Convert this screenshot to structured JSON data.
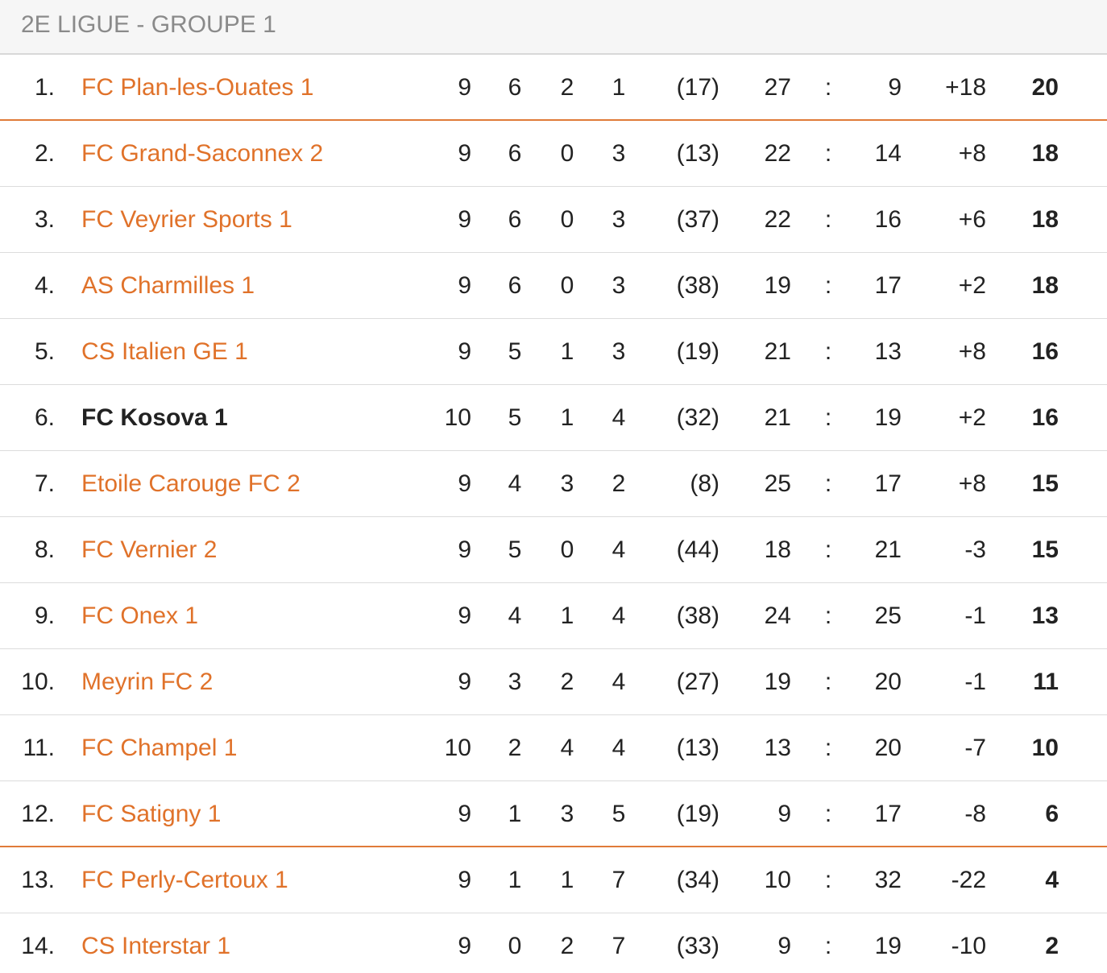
{
  "header": {
    "title": "2E LIGUE - GROUPE 1"
  },
  "table": {
    "rows": [
      [
        "1.",
        "FC Plan-les-Ouates 1",
        "9",
        "6",
        "2",
        "1",
        "(17)",
        "27",
        ":",
        "9",
        "+18",
        "20"
      ],
      [
        "2.",
        "FC Grand-Saconnex 2",
        "9",
        "6",
        "0",
        "3",
        "(13)",
        "22",
        ":",
        "14",
        "+8",
        "18"
      ],
      [
        "3.",
        "FC Veyrier Sports 1",
        "9",
        "6",
        "0",
        "3",
        "(37)",
        "22",
        ":",
        "16",
        "+6",
        "18"
      ],
      [
        "4.",
        "AS Charmilles 1",
        "9",
        "6",
        "0",
        "3",
        "(38)",
        "19",
        ":",
        "17",
        "+2",
        "18"
      ],
      [
        "5.",
        "CS Italien GE 1",
        "9",
        "5",
        "1",
        "3",
        "(19)",
        "21",
        ":",
        "13",
        "+8",
        "16"
      ],
      [
        "6.",
        "FC Kosova 1",
        "10",
        "5",
        "1",
        "4",
        "(32)",
        "21",
        ":",
        "19",
        "+2",
        "16"
      ],
      [
        "7.",
        "Etoile Carouge FC 2",
        "9",
        "4",
        "3",
        "2",
        "(8)",
        "25",
        ":",
        "17",
        "+8",
        "15"
      ],
      [
        "8.",
        "FC Vernier 2",
        "9",
        "5",
        "0",
        "4",
        "(44)",
        "18",
        ":",
        "21",
        "-3",
        "15"
      ],
      [
        "9.",
        "FC Onex 1",
        "9",
        "4",
        "1",
        "4",
        "(38)",
        "24",
        ":",
        "25",
        "-1",
        "13"
      ],
      [
        "10.",
        "Meyrin FC 2",
        "9",
        "3",
        "2",
        "4",
        "(27)",
        "19",
        ":",
        "20",
        "-1",
        "11"
      ],
      [
        "11.",
        "FC Champel 1",
        "10",
        "2",
        "4",
        "4",
        "(13)",
        "13",
        ":",
        "20",
        "-7",
        "10"
      ],
      [
        "12.",
        "FC Satigny 1",
        "9",
        "1",
        "3",
        "5",
        "(19)",
        "9",
        ":",
        "17",
        "-8",
        "6"
      ],
      [
        "13.",
        "FC Perly-Certoux 1",
        "9",
        "1",
        "1",
        "7",
        "(34)",
        "10",
        ":",
        "32",
        "-22",
        "4"
      ],
      [
        "14.",
        "CS Interstar 1",
        "9",
        "0",
        "2",
        "7",
        "(33)",
        "9",
        ":",
        "19",
        "-10",
        "2"
      ]
    ]
  }
}
